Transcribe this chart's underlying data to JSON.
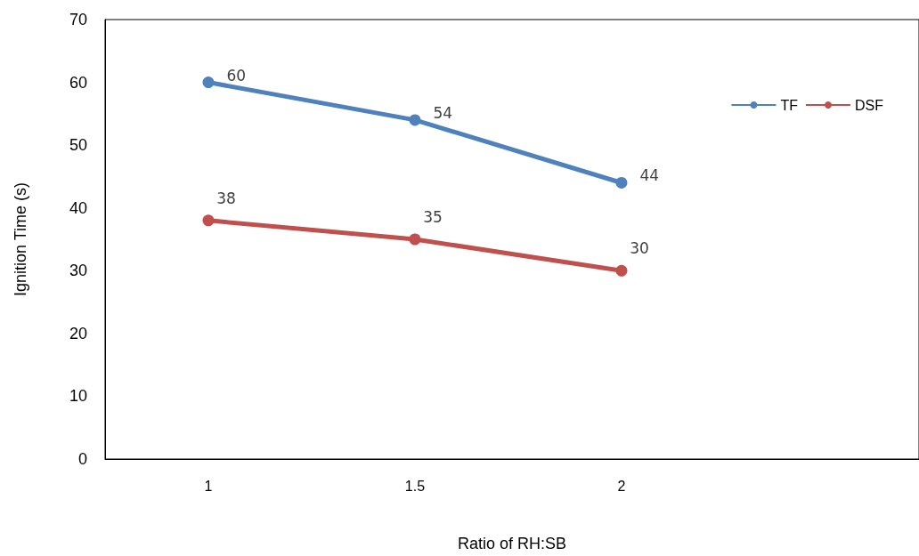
{
  "chart_data": {
    "type": "line",
    "xlabel": "Ratio of RH:SB",
    "ylabel": "Ignition Time (s)",
    "x": [
      1,
      1.5,
      2
    ],
    "xlim": [
      0.75,
      2.72
    ],
    "xticks": [
      1,
      1.5,
      2
    ],
    "ylim": [
      0,
      70
    ],
    "yticks": [
      0,
      10,
      20,
      30,
      40,
      50,
      60,
      70
    ],
    "grid": false,
    "legend": "top right",
    "marker": "circle",
    "data_labels": true,
    "series": [
      {
        "name": "TF",
        "color": "#4f81bd",
        "values": [
          60,
          54,
          44
        ]
      },
      {
        "name": "DSF",
        "color": "#c0504d",
        "values": [
          38,
          35,
          30
        ]
      }
    ]
  }
}
